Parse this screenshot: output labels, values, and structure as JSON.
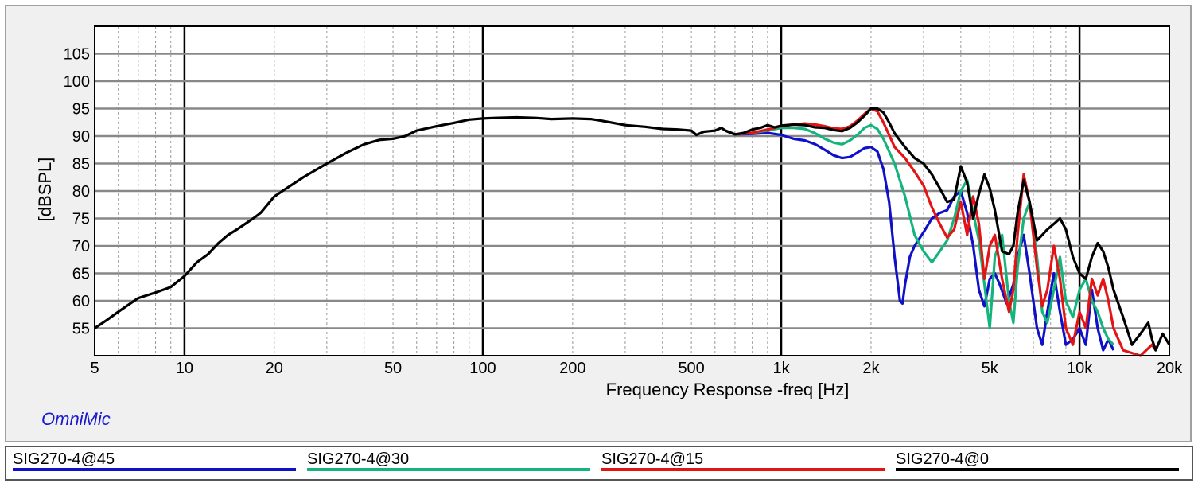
{
  "brand": "OmniMic",
  "chart_data": {
    "type": "line",
    "x_scale": "log",
    "xlabel": "Frequency Response -freq [Hz]",
    "ylabel": "[dBSPL]",
    "xlim": [
      5,
      20000
    ],
    "ylim": [
      50,
      110
    ],
    "x_ticks": [
      {
        "value": 5,
        "label": "5"
      },
      {
        "value": 10,
        "label": "10"
      },
      {
        "value": 20,
        "label": "20"
      },
      {
        "value": 50,
        "label": "50"
      },
      {
        "value": 100,
        "label": "100"
      },
      {
        "value": 200,
        "label": "200"
      },
      {
        "value": 500,
        "label": "500"
      },
      {
        "value": 1000,
        "label": "1k"
      },
      {
        "value": 2000,
        "label": "2k"
      },
      {
        "value": 5000,
        "label": "5k"
      },
      {
        "value": 10000,
        "label": "10k"
      },
      {
        "value": 20000,
        "label": "20k"
      }
    ],
    "y_ticks": [
      55,
      60,
      65,
      70,
      75,
      80,
      85,
      90,
      95,
      100,
      105
    ],
    "grid": true,
    "legend_position": "bottom",
    "series": [
      {
        "name": "SIG270-4@45",
        "color": "#1010c8",
        "points": [
          [
            650,
            91
          ],
          [
            700,
            90.3
          ],
          [
            800,
            90.4
          ],
          [
            900,
            90.6
          ],
          [
            1000,
            90.2
          ],
          [
            1100,
            89.5
          ],
          [
            1200,
            89.2
          ],
          [
            1300,
            88.5
          ],
          [
            1400,
            87.5
          ],
          [
            1500,
            86.5
          ],
          [
            1600,
            86
          ],
          [
            1700,
            86.2
          ],
          [
            1800,
            87
          ],
          [
            1900,
            87.8
          ],
          [
            2000,
            88
          ],
          [
            2100,
            87.2
          ],
          [
            2200,
            84
          ],
          [
            2300,
            78
          ],
          [
            2400,
            68
          ],
          [
            2500,
            60
          ],
          [
            2550,
            59.5
          ],
          [
            2600,
            63
          ],
          [
            2700,
            68
          ],
          [
            2800,
            70
          ],
          [
            3000,
            72.5
          ],
          [
            3200,
            75
          ],
          [
            3400,
            76
          ],
          [
            3600,
            76.5
          ],
          [
            3800,
            79
          ],
          [
            4000,
            80
          ],
          [
            4200,
            76
          ],
          [
            4400,
            70
          ],
          [
            4600,
            62
          ],
          [
            4800,
            59
          ],
          [
            5000,
            64
          ],
          [
            5200,
            65
          ],
          [
            5400,
            63
          ],
          [
            5700,
            59.5
          ],
          [
            6000,
            63
          ],
          [
            6200,
            68
          ],
          [
            6500,
            72
          ],
          [
            6800,
            65
          ],
          [
            7200,
            55
          ],
          [
            7500,
            52
          ],
          [
            7800,
            58
          ],
          [
            8200,
            65
          ],
          [
            8600,
            58
          ],
          [
            9000,
            52
          ],
          [
            9500,
            53
          ],
          [
            10000,
            55
          ],
          [
            10500,
            52
          ],
          [
            11000,
            62
          ],
          [
            11500,
            55
          ],
          [
            12000,
            51
          ],
          [
            12500,
            53
          ],
          [
            13000,
            51
          ]
        ]
      },
      {
        "name": "SIG270-4@30",
        "color": "#14b47d",
        "points": [
          [
            650,
            91
          ],
          [
            700,
            90.3
          ],
          [
            800,
            90.6
          ],
          [
            900,
            91
          ],
          [
            1000,
            91.5
          ],
          [
            1100,
            91.5
          ],
          [
            1200,
            91.3
          ],
          [
            1300,
            90.5
          ],
          [
            1400,
            89.5
          ],
          [
            1500,
            88.8
          ],
          [
            1600,
            88.5
          ],
          [
            1700,
            89.2
          ],
          [
            1800,
            90.2
          ],
          [
            1900,
            91.5
          ],
          [
            2000,
            92
          ],
          [
            2100,
            91.3
          ],
          [
            2200,
            89.5
          ],
          [
            2400,
            85
          ],
          [
            2600,
            79
          ],
          [
            2800,
            72
          ],
          [
            3000,
            69
          ],
          [
            3200,
            67
          ],
          [
            3400,
            69
          ],
          [
            3600,
            71
          ],
          [
            3800,
            75
          ],
          [
            4000,
            80
          ],
          [
            4200,
            82
          ],
          [
            4400,
            76
          ],
          [
            4600,
            71
          ],
          [
            4800,
            63
          ],
          [
            5000,
            55
          ],
          [
            5200,
            68
          ],
          [
            5500,
            72
          ],
          [
            5800,
            60
          ],
          [
            6000,
            56
          ],
          [
            6200,
            66
          ],
          [
            6500,
            75
          ],
          [
            6800,
            78
          ],
          [
            7200,
            68
          ],
          [
            7500,
            58
          ],
          [
            7800,
            56
          ],
          [
            8200,
            62
          ],
          [
            8600,
            68
          ],
          [
            9000,
            60
          ],
          [
            9500,
            57
          ],
          [
            10000,
            62
          ],
          [
            10500,
            64
          ],
          [
            11000,
            60
          ],
          [
            11500,
            58
          ],
          [
            12000,
            55
          ],
          [
            12500,
            53
          ],
          [
            13000,
            52
          ]
        ]
      },
      {
        "name": "SIG270-4@15",
        "color": "#e41414",
        "points": [
          [
            650,
            91
          ],
          [
            700,
            90.3
          ],
          [
            800,
            90.6
          ],
          [
            900,
            91.2
          ],
          [
            1000,
            91.8
          ],
          [
            1100,
            92.1
          ],
          [
            1200,
            92.3
          ],
          [
            1300,
            92.1
          ],
          [
            1400,
            91.8
          ],
          [
            1500,
            91.4
          ],
          [
            1600,
            91.3
          ],
          [
            1700,
            91.8
          ],
          [
            1800,
            92.8
          ],
          [
            1900,
            94
          ],
          [
            2000,
            95
          ],
          [
            2100,
            94.5
          ],
          [
            2200,
            92.5
          ],
          [
            2400,
            88
          ],
          [
            2600,
            86
          ],
          [
            2800,
            83.5
          ],
          [
            3000,
            81
          ],
          [
            3200,
            77
          ],
          [
            3400,
            74
          ],
          [
            3600,
            71.5
          ],
          [
            3800,
            73
          ],
          [
            4000,
            78
          ],
          [
            4200,
            72
          ],
          [
            4400,
            79
          ],
          [
            4600,
            74
          ],
          [
            4800,
            64
          ],
          [
            5000,
            70
          ],
          [
            5200,
            72
          ],
          [
            5500,
            64
          ],
          [
            5800,
            58
          ],
          [
            6000,
            62
          ],
          [
            6200,
            72
          ],
          [
            6500,
            83
          ],
          [
            6800,
            78
          ],
          [
            7200,
            66
          ],
          [
            7500,
            59
          ],
          [
            7800,
            62
          ],
          [
            8200,
            70
          ],
          [
            8600,
            64
          ],
          [
            9000,
            55
          ],
          [
            9500,
            52
          ],
          [
            10000,
            58
          ],
          [
            10500,
            55
          ],
          [
            11000,
            64
          ],
          [
            11500,
            61
          ],
          [
            12000,
            64
          ],
          [
            12500,
            60
          ],
          [
            13000,
            55
          ],
          [
            14000,
            51
          ],
          [
            16000,
            50
          ],
          [
            17500,
            52
          ],
          [
            18000,
            51
          ]
        ]
      },
      {
        "name": "SIG270-4@0",
        "color": "#000000",
        "points": [
          [
            5,
            55
          ],
          [
            5.5,
            56.5
          ],
          [
            6,
            58
          ],
          [
            6.5,
            59.3
          ],
          [
            7,
            60.5
          ],
          [
            8,
            61.5
          ],
          [
            9,
            62.5
          ],
          [
            10,
            64.5
          ],
          [
            11,
            67
          ],
          [
            12,
            68.5
          ],
          [
            13,
            70.5
          ],
          [
            14,
            72
          ],
          [
            15,
            73
          ],
          [
            17,
            75
          ],
          [
            18,
            76
          ],
          [
            20,
            79
          ],
          [
            22,
            80.5
          ],
          [
            25,
            82.5
          ],
          [
            30,
            85
          ],
          [
            35,
            87
          ],
          [
            40,
            88.5
          ],
          [
            45,
            89.3
          ],
          [
            50,
            89.5
          ],
          [
            55,
            90
          ],
          [
            60,
            91
          ],
          [
            70,
            91.8
          ],
          [
            80,
            92.4
          ],
          [
            90,
            93
          ],
          [
            100,
            93.2
          ],
          [
            110,
            93.3
          ],
          [
            130,
            93.4
          ],
          [
            150,
            93.3
          ],
          [
            170,
            93.1
          ],
          [
            200,
            93.2
          ],
          [
            230,
            93.1
          ],
          [
            250,
            92.8
          ],
          [
            300,
            92
          ],
          [
            350,
            91.7
          ],
          [
            400,
            91.3
          ],
          [
            450,
            91.2
          ],
          [
            500,
            91
          ],
          [
            520,
            90.2
          ],
          [
            550,
            90.8
          ],
          [
            600,
            91
          ],
          [
            630,
            91.5
          ],
          [
            650,
            91
          ],
          [
            700,
            90.3
          ],
          [
            750,
            90.6
          ],
          [
            800,
            91.2
          ],
          [
            850,
            91.5
          ],
          [
            900,
            92
          ],
          [
            950,
            91.6
          ],
          [
            1000,
            91.9
          ],
          [
            1100,
            92.1
          ],
          [
            1200,
            92
          ],
          [
            1300,
            91.6
          ],
          [
            1400,
            91.5
          ],
          [
            1500,
            91.1
          ],
          [
            1600,
            90.9
          ],
          [
            1700,
            91.5
          ],
          [
            1800,
            92.5
          ],
          [
            1900,
            93.7
          ],
          [
            2000,
            95
          ],
          [
            2100,
            95
          ],
          [
            2200,
            94.3
          ],
          [
            2300,
            92.5
          ],
          [
            2400,
            90.5
          ],
          [
            2600,
            88
          ],
          [
            2800,
            86
          ],
          [
            3000,
            85
          ],
          [
            3200,
            83
          ],
          [
            3400,
            80.5
          ],
          [
            3600,
            78
          ],
          [
            3800,
            78.5
          ],
          [
            4000,
            84.5
          ],
          [
            4200,
            81.5
          ],
          [
            4400,
            75
          ],
          [
            4600,
            79.5
          ],
          [
            4800,
            83
          ],
          [
            5000,
            80.5
          ],
          [
            5200,
            76.5
          ],
          [
            5500,
            69
          ],
          [
            5800,
            68.5
          ],
          [
            6000,
            70
          ],
          [
            6200,
            76
          ],
          [
            6500,
            82
          ],
          [
            6800,
            78
          ],
          [
            7200,
            71
          ],
          [
            7500,
            72
          ],
          [
            7800,
            73
          ],
          [
            8200,
            74
          ],
          [
            8600,
            75
          ],
          [
            9000,
            73
          ],
          [
            9500,
            68
          ],
          [
            10000,
            65
          ],
          [
            10500,
            64
          ],
          [
            11000,
            68
          ],
          [
            11500,
            70.5
          ],
          [
            12000,
            69
          ],
          [
            12500,
            66
          ],
          [
            13000,
            62
          ],
          [
            14000,
            57
          ],
          [
            15000,
            52
          ],
          [
            16000,
            54
          ],
          [
            17000,
            56
          ],
          [
            17500,
            53
          ],
          [
            18000,
            51
          ],
          [
            19000,
            54
          ],
          [
            20000,
            52
          ]
        ]
      }
    ]
  }
}
